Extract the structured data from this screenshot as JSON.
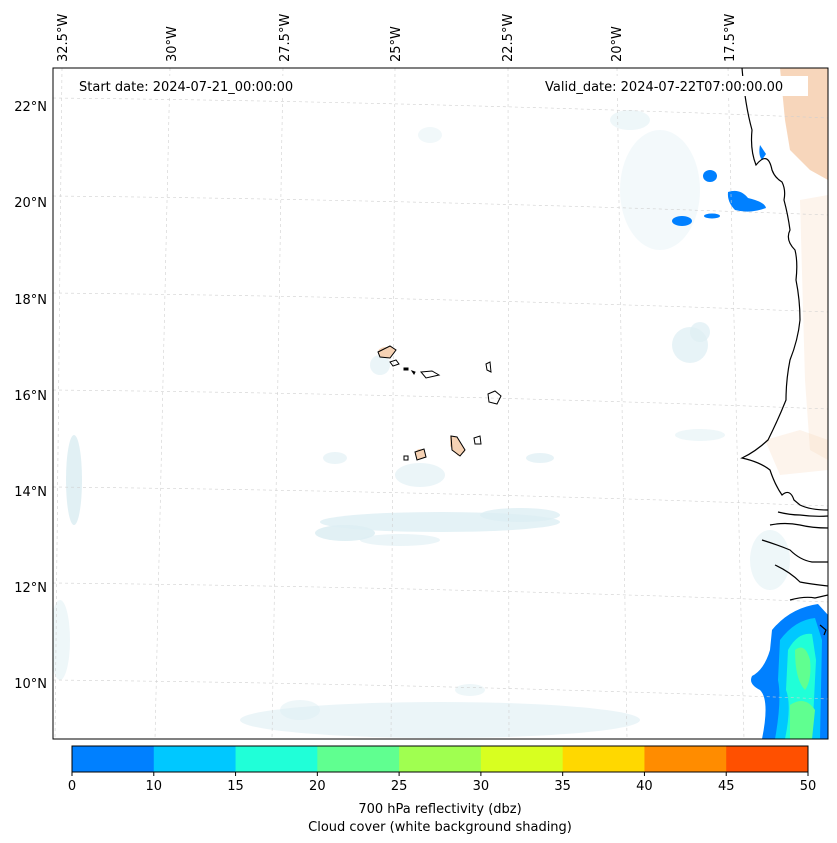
{
  "map": {
    "start_label": "Start date: 2024-07-21_00:00:00",
    "valid_label": "Valid_date: 2024-07-22T07:00:00.00",
    "lon_labels": [
      "32.5°W",
      "30°W",
      "27.5°W",
      "25°W",
      "22.5°W",
      "20°W",
      "17.5°W"
    ],
    "lat_labels": [
      "22°N",
      "20°N",
      "18°N",
      "16°N",
      "14°N",
      "12°N",
      "10°N"
    ]
  },
  "colorbar": {
    "ticks": [
      "0",
      "10",
      "15",
      "20",
      "25",
      "30",
      "35",
      "40",
      "45",
      "50"
    ],
    "colors": [
      "#0080ff",
      "#00c8ff",
      "#20ffd8",
      "#60ff90",
      "#a0ff50",
      "#d8ff20",
      "#ffd800",
      "#ff8c00",
      "#ff5000"
    ],
    "label_line1": "700 hPa reflectivity (dbz)",
    "label_line2": "Cloud cover (white background shading)"
  },
  "colors": {
    "frame": "#000000",
    "grid": "#cfcfcf",
    "cloud": "#d7ebf1",
    "land": "#f6d2b4",
    "coast": "#000000"
  }
}
